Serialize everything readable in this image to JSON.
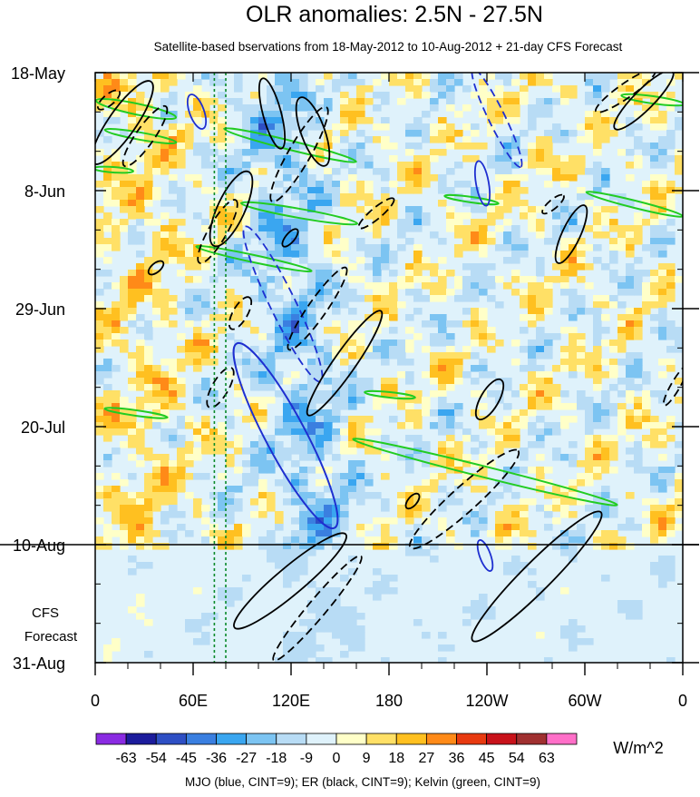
{
  "chart_data": {
    "type": "heatmap",
    "title": "OLR anomalies: 2.5N - 27.5N",
    "subtitle": "Satellite-based bservations from 18-May-2012 to 10-Aug-2012 + 21-day CFS Forecast",
    "x_ticks": [
      "0",
      "60E",
      "120E",
      "180",
      "120W",
      "60W",
      "0"
    ],
    "x_tick_lon": [
      0,
      60,
      120,
      180,
      240,
      300,
      360
    ],
    "y_ticks": [
      "18-May",
      "8-Jun",
      "29-Jun",
      "20-Jul",
      "10-Aug",
      "31-Aug"
    ],
    "y_tick_day": [
      0,
      21,
      42,
      63,
      84,
      105
    ],
    "forecast_start": "10-Aug",
    "forecast_label_line1": "CFS",
    "forecast_label_line2": "Forecast",
    "colorbar_labels": [
      "-63",
      "-54",
      "-45",
      "-36",
      "-27",
      "-18",
      "-9",
      "0",
      "9",
      "18",
      "27",
      "36",
      "45",
      "54",
      "63"
    ],
    "colorbar_colors": [
      "#8a2be2",
      "#1c1c9c",
      "#2e4fc4",
      "#3a7fe0",
      "#3aa6f0",
      "#7cc4f2",
      "#b8dcf5",
      "#dff2fb",
      "#ffffc8",
      "#ffe066",
      "#ffc020",
      "#ff8a18",
      "#e83a10",
      "#c8121a",
      "#a03030",
      "#ff6fc8"
    ],
    "units": "W/m^2",
    "legend": "MJO (blue, CINT=9); ER (black, CINT=9); Kelvin (green, CINT=9)",
    "contour_colors": {
      "mjo": "#1e2fd0",
      "er": "#000000",
      "kelvin": "#22cc22"
    },
    "vertical_reference_lines_lon": [
      73,
      80
    ]
  }
}
